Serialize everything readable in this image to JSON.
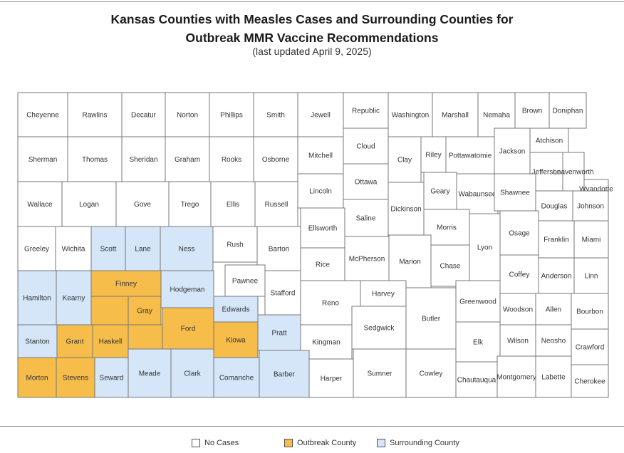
{
  "title_line1": "Kansas Counties with Measles Cases and Surrounding Counties for",
  "title_line2": "Outbreak MMR Vaccine Recommendations",
  "subtitle": "(last updated April 9, 2025)",
  "colors": {
    "no_cases": "#ffffff",
    "outbreak": "#f6bd4a",
    "surrounding": "#d4e6f8",
    "border": "#777777",
    "label": "#333333"
  },
  "legend": [
    {
      "key": "none",
      "label": "No Cases"
    },
    {
      "key": "outbreak",
      "label": "Outbreak County"
    },
    {
      "key": "surrounding",
      "label": "Surrounding County"
    }
  ],
  "counties": [
    {
      "name": "Cheyenne",
      "status": "none"
    },
    {
      "name": "Rawlins",
      "status": "none"
    },
    {
      "name": "Decatur",
      "status": "none"
    },
    {
      "name": "Norton",
      "status": "none"
    },
    {
      "name": "Phillips",
      "status": "none"
    },
    {
      "name": "Smith",
      "status": "none"
    },
    {
      "name": "Jewell",
      "status": "none"
    },
    {
      "name": "Republic",
      "status": "none"
    },
    {
      "name": "Washington",
      "status": "none"
    },
    {
      "name": "Marshall",
      "status": "none"
    },
    {
      "name": "Nemaha",
      "status": "none"
    },
    {
      "name": "Brown",
      "status": "none"
    },
    {
      "name": "Doniphan",
      "status": "none"
    },
    {
      "name": "Sherman",
      "status": "none"
    },
    {
      "name": "Thomas",
      "status": "none"
    },
    {
      "name": "Sheridan",
      "status": "none"
    },
    {
      "name": "Graham",
      "status": "none"
    },
    {
      "name": "Rooks",
      "status": "none"
    },
    {
      "name": "Osborne",
      "status": "none"
    },
    {
      "name": "Mitchell",
      "status": "none"
    },
    {
      "name": "Cloud",
      "status": "none"
    },
    {
      "name": "Clay",
      "status": "none"
    },
    {
      "name": "Riley",
      "status": "none"
    },
    {
      "name": "Pottawatomie",
      "status": "none"
    },
    {
      "name": "Jackson",
      "status": "none"
    },
    {
      "name": "Atchison",
      "status": "none"
    },
    {
      "name": "Jefferson",
      "status": "none"
    },
    {
      "name": "Leavenworth",
      "status": "none"
    },
    {
      "name": "Wyandotte",
      "status": "none"
    },
    {
      "name": "Wallace",
      "status": "none"
    },
    {
      "name": "Logan",
      "status": "none"
    },
    {
      "name": "Gove",
      "status": "none"
    },
    {
      "name": "Trego",
      "status": "none"
    },
    {
      "name": "Ellis",
      "status": "none"
    },
    {
      "name": "Russell",
      "status": "none"
    },
    {
      "name": "Lincoln",
      "status": "none"
    },
    {
      "name": "Ottawa",
      "status": "none"
    },
    {
      "name": "Saline",
      "status": "none"
    },
    {
      "name": "Dickinson",
      "status": "none"
    },
    {
      "name": "Geary",
      "status": "none"
    },
    {
      "name": "Wabaunsee",
      "status": "none"
    },
    {
      "name": "Shawnee",
      "status": "none"
    },
    {
      "name": "Douglas",
      "status": "none"
    },
    {
      "name": "Johnson",
      "status": "none"
    },
    {
      "name": "Greeley",
      "status": "none"
    },
    {
      "name": "Wichita",
      "status": "none"
    },
    {
      "name": "Scott",
      "status": "surrounding"
    },
    {
      "name": "Lane",
      "status": "surrounding"
    },
    {
      "name": "Ness",
      "status": "surrounding"
    },
    {
      "name": "Rush",
      "status": "none"
    },
    {
      "name": "Barton",
      "status": "none"
    },
    {
      "name": "Ellsworth",
      "status": "none"
    },
    {
      "name": "Morris",
      "status": "none"
    },
    {
      "name": "Osage",
      "status": "none"
    },
    {
      "name": "Franklin",
      "status": "none"
    },
    {
      "name": "Miami",
      "status": "none"
    },
    {
      "name": "Rice",
      "status": "none"
    },
    {
      "name": "McPherson",
      "status": "none"
    },
    {
      "name": "Marion",
      "status": "none"
    },
    {
      "name": "Chase",
      "status": "none"
    },
    {
      "name": "Lyon",
      "status": "none"
    },
    {
      "name": "Coffey",
      "status": "none"
    },
    {
      "name": "Anderson",
      "status": "none"
    },
    {
      "name": "Linn",
      "status": "none"
    },
    {
      "name": "Hamilton",
      "status": "surrounding"
    },
    {
      "name": "Kearny",
      "status": "surrounding"
    },
    {
      "name": "Finney",
      "status": "outbreak"
    },
    {
      "name": "Hodgeman",
      "status": "surrounding"
    },
    {
      "name": "Pawnee",
      "status": "none"
    },
    {
      "name": "Stafford",
      "status": "none"
    },
    {
      "name": "Reno",
      "status": "none"
    },
    {
      "name": "Harvey",
      "status": "none"
    },
    {
      "name": "Butler",
      "status": "none"
    },
    {
      "name": "Greenwood",
      "status": "none"
    },
    {
      "name": "Woodson",
      "status": "none"
    },
    {
      "name": "Allen",
      "status": "none"
    },
    {
      "name": "Bourbon",
      "status": "none"
    },
    {
      "name": "Gray",
      "status": "outbreak"
    },
    {
      "name": "Edwards",
      "status": "surrounding"
    },
    {
      "name": "Ford",
      "status": "outbreak"
    },
    {
      "name": "Stanton",
      "status": "surrounding"
    },
    {
      "name": "Grant",
      "status": "outbreak"
    },
    {
      "name": "Haskell",
      "status": "outbreak"
    },
    {
      "name": "Kiowa",
      "status": "outbreak"
    },
    {
      "name": "Pratt",
      "status": "surrounding"
    },
    {
      "name": "Kingman",
      "status": "none"
    },
    {
      "name": "Sedgwick",
      "status": "none"
    },
    {
      "name": "Wilson",
      "status": "none"
    },
    {
      "name": "Neosho",
      "status": "none"
    },
    {
      "name": "Crawford",
      "status": "none"
    },
    {
      "name": "Elk",
      "status": "none"
    },
    {
      "name": "Morton",
      "status": "outbreak"
    },
    {
      "name": "Stevens",
      "status": "outbreak"
    },
    {
      "name": "Seward",
      "status": "surrounding"
    },
    {
      "name": "Meade",
      "status": "surrounding"
    },
    {
      "name": "Clark",
      "status": "surrounding"
    },
    {
      "name": "Comanche",
      "status": "surrounding"
    },
    {
      "name": "Barber",
      "status": "surrounding"
    },
    {
      "name": "Harper",
      "status": "none"
    },
    {
      "name": "Sumner",
      "status": "none"
    },
    {
      "name": "Cowley",
      "status": "none"
    },
    {
      "name": "Chautauqua",
      "status": "none"
    },
    {
      "name": "Montgomery",
      "status": "none"
    },
    {
      "name": "Labette",
      "status": "none"
    },
    {
      "name": "Cherokee",
      "status": "none"
    }
  ]
}
